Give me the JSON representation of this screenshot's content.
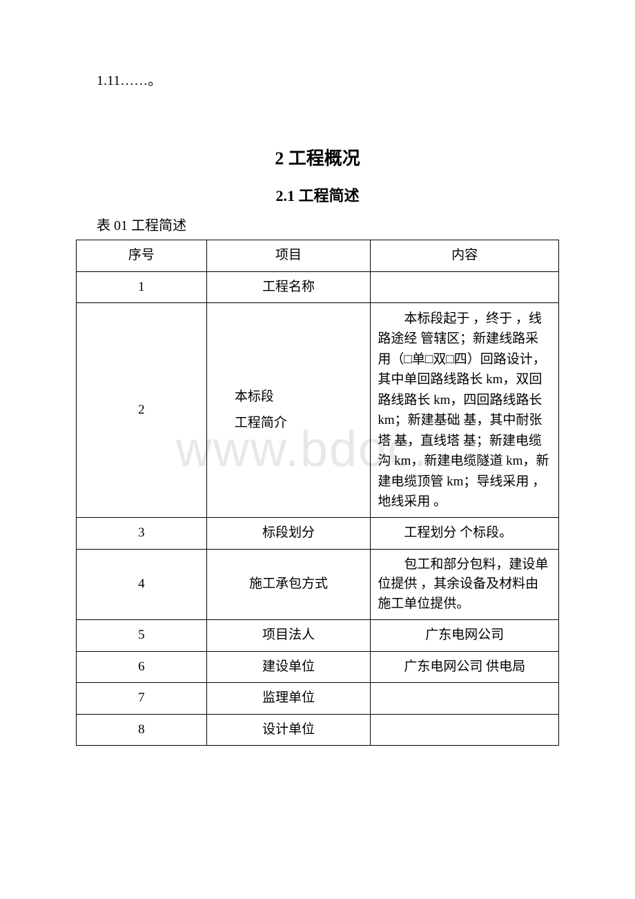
{
  "watermark": "www.bdoc...",
  "intro": "1.11……。",
  "heading1": "2 工程概况",
  "heading2": "2.1 工程简述",
  "tableCaption": "表 01 工程简述",
  "table": {
    "header": {
      "c1": "序号",
      "c2": "项目",
      "c3": "内容"
    },
    "rows": [
      {
        "c1": "1",
        "c2": "工程名称",
        "c3": ""
      },
      {
        "c1": "2",
        "c2": "本标段\n工程简介",
        "c3": "　　本标段起于 ，终于 ，线路途经 管辖区；新建线路采用（□单□双□四）回路设计，其中单回路线路长 km，双回路线路长 km，四回路线路长 km；新建基础 基，其中耐张塔 基，直线塔 基；新建电缆沟 km，新建电缆隧道 km，新建电缆顶管 km；导线采用 ，地线采用 。"
      },
      {
        "c1": "3",
        "c2": "标段划分",
        "c3": "　　工程划分 个标段。"
      },
      {
        "c1": "4",
        "c2": "施工承包方式",
        "c3": "　　包工和部分包料，建设单位提供 ，其余设备及材料由施工单位提供。"
      },
      {
        "c1": "5",
        "c2": "项目法人",
        "c3": "广东电网公司"
      },
      {
        "c1": "6",
        "c2": "建设单位",
        "c3": "　　广东电网公司 供电局"
      },
      {
        "c1": "7",
        "c2": "监理单位",
        "c3": ""
      },
      {
        "c1": "8",
        "c2": "设计单位",
        "c3": ""
      }
    ]
  },
  "styles": {
    "background_color": "#ffffff",
    "text_color": "#000000",
    "watermark_color": "#e8e8e8",
    "border_color": "#000000",
    "body_font_size": 20,
    "heading1_font_size": 26,
    "heading2_font_size": 22,
    "watermark_font_size": 72
  }
}
